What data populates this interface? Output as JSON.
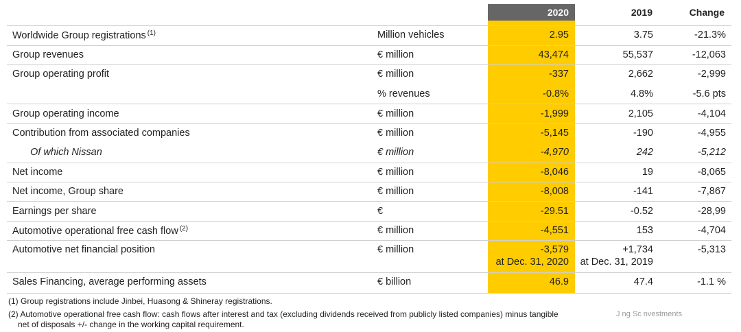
{
  "header": {
    "col_2020": "2020",
    "col_2019": "2019",
    "col_change": "Change"
  },
  "rows": [
    {
      "label": "Worldwide Group registrations",
      "ref": "(1)",
      "unit": "Million vehicles",
      "v2020": "2.95",
      "v2019": "3.75",
      "change": "-21.3%"
    },
    {
      "label": "Group revenues",
      "unit": "€ million",
      "v2020": "43,474",
      "v2019": "55,537",
      "change": "-12,063"
    },
    {
      "label": "Group operating profit",
      "unit": "€ million",
      "v2020": "-337",
      "v2019": "2,662",
      "change": "-2,999"
    },
    {
      "label": "",
      "unit": "% revenues",
      "v2020": "-0.8%",
      "v2019": "4.8%",
      "change": "-5.6 pts"
    },
    {
      "label": "Group operating income",
      "unit": "€ million",
      "v2020": "-1,999",
      "v2019": "2,105",
      "change": "-4,104"
    },
    {
      "label": "Contribution from associated companies",
      "unit": "€ million",
      "v2020": "-5,145",
      "v2019": "-190",
      "change": "-4,955"
    },
    {
      "label": "Of which Nissan",
      "unit": "€ million",
      "v2020": "-4,970",
      "v2019": "242",
      "change": "-5,212"
    },
    {
      "label": "Net income",
      "unit": "€ million",
      "v2020": "-8,046",
      "v2019": "19",
      "change": "-8,065"
    },
    {
      "label": "Net income, Group share",
      "unit": "€ million",
      "v2020": "-8,008",
      "v2019": "-141",
      "change": "-7,867"
    },
    {
      "label": "Earnings per share",
      "unit": "€",
      "v2020": "-29.51",
      "v2019": "-0.52",
      "change": "-28,99"
    },
    {
      "label": "Automotive operational free cash flow",
      "ref": "(2)",
      "unit": "€ million",
      "v2020": "-4,551",
      "v2019": "153",
      "change": "-4,704"
    },
    {
      "label": "Automotive net financial position",
      "unit": "€ million",
      "v2020": "-3,579",
      "v2020_sub": "at Dec. 31, 2020",
      "v2019": "+1,734",
      "v2019_sub": "at Dec. 31, 2019",
      "change": "-5,313"
    },
    {
      "label": "Sales Financing, average performing assets",
      "unit": "€ billion",
      "v2020": "46.9",
      "v2019": "47.4",
      "change": "-1.1 %"
    }
  ],
  "footnotes": {
    "note1": "(1) Group registrations include Jinbei, Huasong & Shineray registrations.",
    "note2_line1": "(2) Automotive operational free cash flow: cash flows after interest and tax (excluding dividends received from publicly listed companies) minus tangible",
    "note2_line2": "net of disposals +/- change in the working capital requirement."
  },
  "watermark": "J  ng Sc  nvestments",
  "colors": {
    "highlight": "#ffcc00",
    "header_2020_bg": "#666666",
    "separator": "#cfcfcf"
  }
}
